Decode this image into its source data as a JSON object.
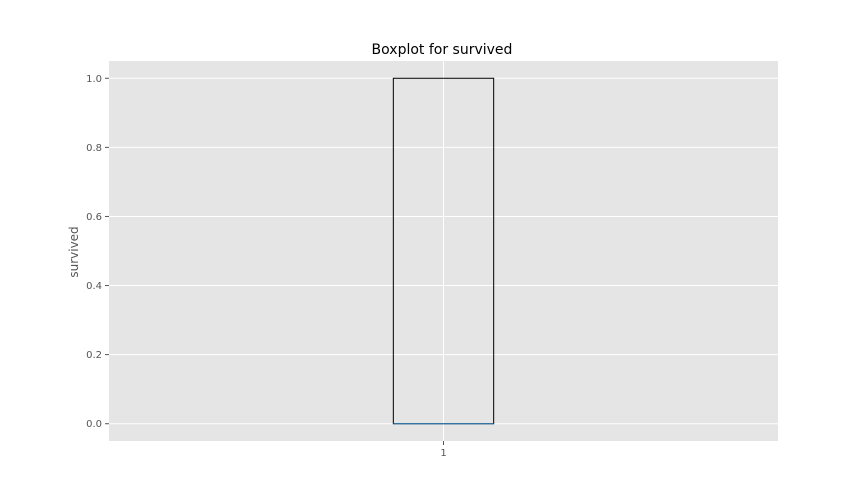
{
  "chart_data": {
    "type": "boxplot",
    "title": "Boxplot for survived",
    "xlabel": "",
    "ylabel": "survived",
    "categories": [
      "1"
    ],
    "boxes": [
      {
        "category": "1",
        "whisker_low": 0.0,
        "q1": 0.0,
        "median": 0.0,
        "q3": 1.0,
        "whisker_high": 1.0
      }
    ],
    "ylim": [
      -0.05,
      1.05
    ],
    "yticks": [
      0.0,
      0.2,
      0.4,
      0.6,
      0.8,
      1.0
    ],
    "ytick_labels": [
      "0.0",
      "0.2",
      "0.4",
      "0.6",
      "0.8",
      "1.0"
    ],
    "grid": true,
    "colors": {
      "plot_background": "#e5e5e5",
      "grid": "#ffffff",
      "box": "#000000",
      "median": "#1f77b4",
      "tick": "#555555"
    }
  }
}
